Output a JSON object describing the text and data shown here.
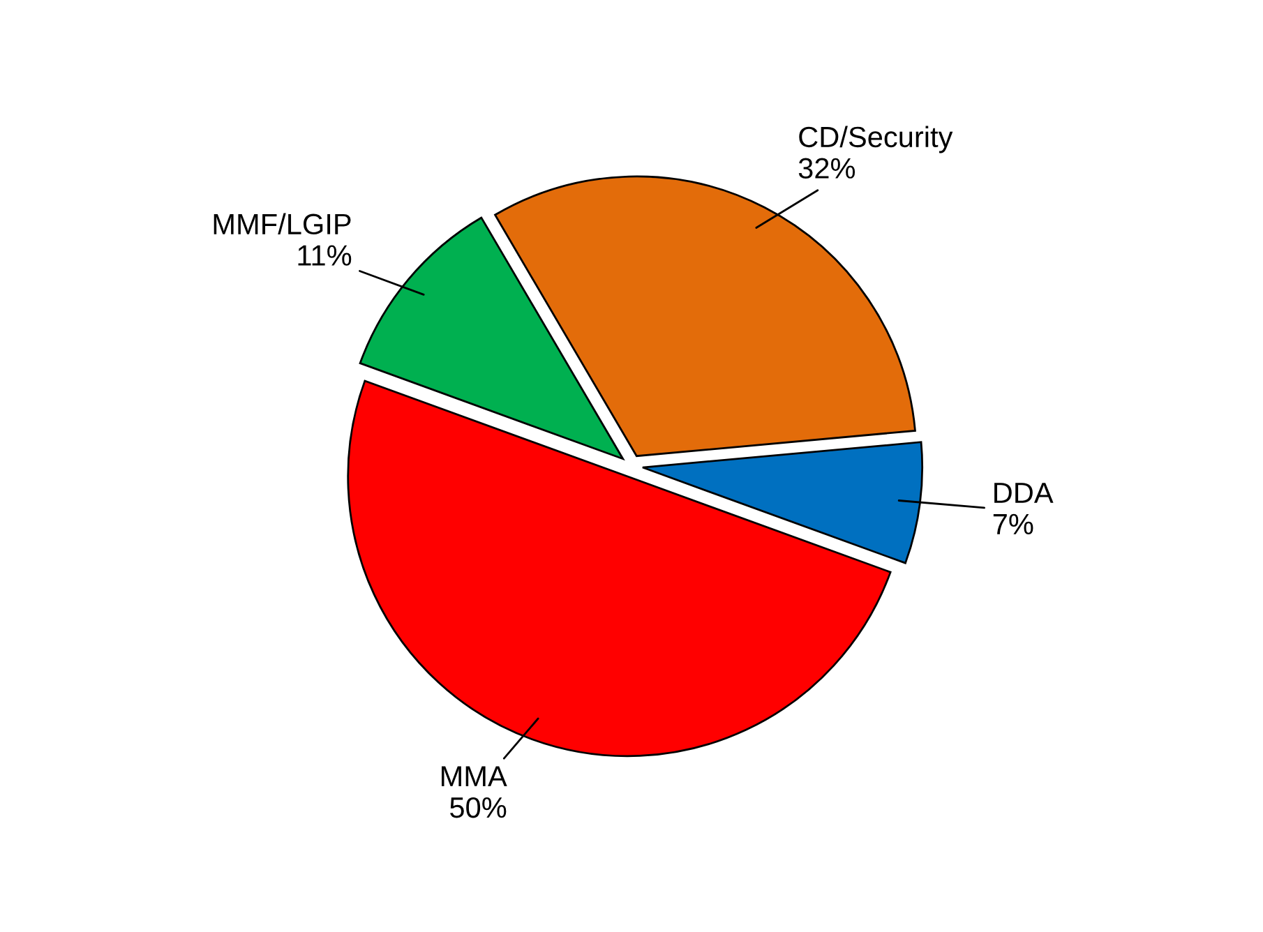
{
  "chart_data": {
    "type": "pie",
    "categories": [
      "DDA",
      "CD/Security",
      "MMF/LGIP",
      "MMA"
    ],
    "values": [
      7,
      32,
      11,
      50
    ],
    "colors": [
      "#0070c0",
      "#e36c0a",
      "#00b050",
      "#ff0000"
    ],
    "value_labels": [
      "7%",
      "32%",
      "11%",
      "50%"
    ]
  }
}
